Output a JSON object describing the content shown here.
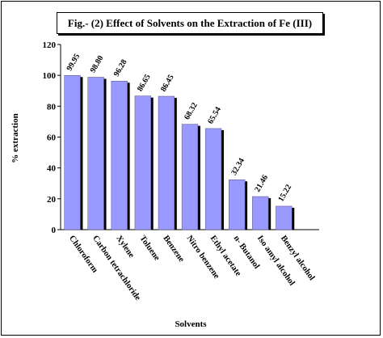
{
  "chart_data": {
    "type": "bar",
    "title": "Fig.- (2)  Effect of Solvents on the Extraction of Fe (III)",
    "xlabel": "Solvents",
    "ylabel": "% extraction",
    "ylim": [
      0,
      120
    ],
    "yticks": [
      0,
      20,
      40,
      60,
      80,
      100,
      120
    ],
    "categories": [
      "Chloroform",
      "Carbon tetrachloride",
      "Xylene",
      "Toluene",
      "Benzene",
      "Nitro benzene",
      "Ethyl acetate",
      "n- Butanol",
      "Iso amyl alcohol",
      "Benzyl alcohol"
    ],
    "values": [
      99.95,
      98.8,
      96.28,
      86.65,
      86.45,
      68.32,
      65.54,
      32.34,
      21.46,
      15.22
    ],
    "data_labels": [
      "99.95",
      "98.80",
      "96.28",
      "86.65",
      "86.45",
      "68.32",
      "65.54",
      "32.34",
      "21.46",
      "15.22"
    ],
    "bar_color": "#9999ff",
    "bar_shadow_color": "#000000",
    "grid": false,
    "legend": "none"
  }
}
